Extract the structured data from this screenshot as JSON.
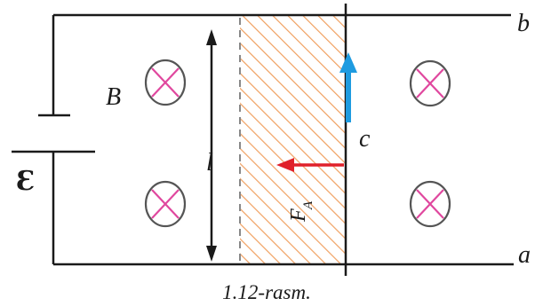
{
  "figure": {
    "caption": "1.12-rasm.",
    "labels": {
      "rail_top": "b",
      "rail_bottom": "a",
      "rod": "c",
      "field": "B",
      "length": "l",
      "force": "F",
      "force_subscript": "A",
      "emf": "Ɛ"
    },
    "field_symbols_count": 4,
    "field_direction": "into-page",
    "colors": {
      "wire": "#1a1a1a",
      "field_circle": "#555555",
      "field_cross": "#e0479e",
      "hatch": "#f0a060",
      "current_arrow": "#1e9be0",
      "force_arrow": "#e0202a",
      "dashed_line": "#888888"
    }
  }
}
